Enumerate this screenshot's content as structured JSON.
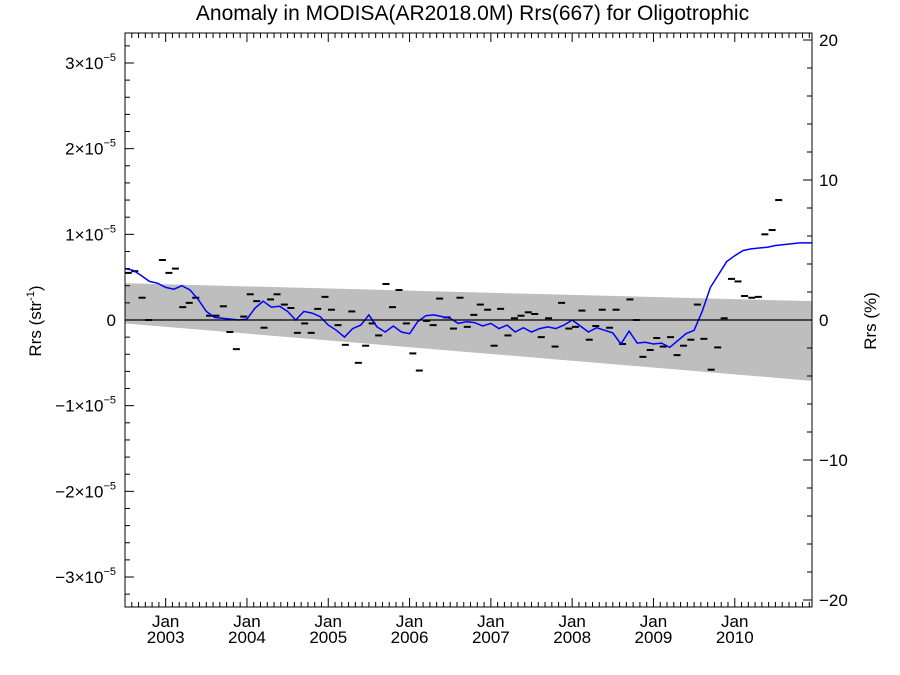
{
  "chart_data": {
    "type": "line",
    "title": "Anomaly in MODISA(AR2018.0M) Rrs(667) for Oligotrophic",
    "ylabel": "Rrs (str",
    "ylabel_sup": "-1",
    "ylabel_close": ")",
    "y2label": "Rrs (%)",
    "xlim": [
      2002.5,
      2010.95
    ],
    "ylim": [
      -3.35e-05,
      3.35e-05
    ],
    "y2lim": [
      -20.5,
      20.5
    ],
    "y_ticks": [
      {
        "value": 3e-05,
        "mant": "3×10",
        "exp": "−5"
      },
      {
        "value": 2e-05,
        "mant": "2×10",
        "exp": "−5"
      },
      {
        "value": 1e-05,
        "mant": "1×10",
        "exp": "−5"
      },
      {
        "value": 0,
        "mant": "0",
        "exp": ""
      },
      {
        "value": -1e-05,
        "mant": "−1×10",
        "exp": "−5"
      },
      {
        "value": -2e-05,
        "mant": "−2×10",
        "exp": "−5"
      },
      {
        "value": -3e-05,
        "mant": "−3×10",
        "exp": "−5"
      }
    ],
    "y2_ticks": [
      {
        "value": 20,
        "label": "20"
      },
      {
        "value": 10,
        "label": "10"
      },
      {
        "value": 0,
        "label": "0"
      },
      {
        "value": -10,
        "label": "−10"
      },
      {
        "value": -20,
        "label": "−20"
      }
    ],
    "x_ticks": [
      {
        "value": 2003,
        "month": "Jan",
        "year": "2003"
      },
      {
        "value": 2004,
        "month": "Jan",
        "year": "2004"
      },
      {
        "value": 2005,
        "month": "Jan",
        "year": "2005"
      },
      {
        "value": 2006,
        "month": "Jan",
        "year": "2006"
      },
      {
        "value": 2007,
        "month": "Jan",
        "year": "2007"
      },
      {
        "value": 2008,
        "month": "Jan",
        "year": "2008"
      },
      {
        "value": 2009,
        "month": "Jan",
        "year": "2009"
      },
      {
        "value": 2010,
        "month": "Jan",
        "year": "2010"
      }
    ],
    "band": {
      "color": "#bebebe",
      "x": [
        2002.5,
        2010.95
      ],
      "upper": [
        4.3e-06,
        2.2e-06
      ],
      "lower": [
        -4e-07,
        -7.1e-06
      ]
    },
    "monthly_markers": {
      "color": "#000000",
      "points": [
        [
          2002.54,
          5.5e-06
        ],
        [
          2002.62,
          5.7e-06
        ],
        [
          2002.71,
          2.6e-06
        ],
        [
          2002.79,
          0.0
        ],
        [
          2002.96,
          7e-06
        ],
        [
          2003.04,
          5.5e-06
        ],
        [
          2003.12,
          6e-06
        ],
        [
          2003.21,
          1.5e-06
        ],
        [
          2003.29,
          2e-06
        ],
        [
          2003.37,
          2.6e-06
        ],
        [
          2003.54,
          5e-07
        ],
        [
          2003.62,
          5e-07
        ],
        [
          2003.71,
          1.6e-06
        ],
        [
          2003.79,
          -1.4e-06
        ],
        [
          2003.87,
          -3.4e-06
        ],
        [
          2003.96,
          4e-07
        ],
        [
          2004.04,
          3e-06
        ],
        [
          2004.12,
          2.2e-06
        ],
        [
          2004.21,
          -9e-07
        ],
        [
          2004.29,
          2.4e-06
        ],
        [
          2004.37,
          3e-06
        ],
        [
          2004.46,
          1.8e-06
        ],
        [
          2004.54,
          1.4e-06
        ],
        [
          2004.62,
          -1.5e-06
        ],
        [
          2004.71,
          -4e-07
        ],
        [
          2004.79,
          -1.5e-06
        ],
        [
          2004.87,
          1.3e-06
        ],
        [
          2004.96,
          2.7e-06
        ],
        [
          2005.04,
          1.2e-06
        ],
        [
          2005.12,
          -6e-07
        ],
        [
          2005.21,
          -2.9e-06
        ],
        [
          2005.29,
          1e-06
        ],
        [
          2005.37,
          -5e-06
        ],
        [
          2005.46,
          -3e-06
        ],
        [
          2005.54,
          -4e-07
        ],
        [
          2005.62,
          -1.8e-06
        ],
        [
          2005.71,
          4.2e-06
        ],
        [
          2005.79,
          1.5e-06
        ],
        [
          2005.87,
          3.5e-06
        ],
        [
          2005.96,
          -4e-07
        ],
        [
          2006.04,
          -3.9e-06
        ],
        [
          2006.12,
          -5.9e-06
        ],
        [
          2006.21,
          -1e-07
        ],
        [
          2006.29,
          -6e-07
        ],
        [
          2006.37,
          2.5e-06
        ],
        [
          2006.46,
          3e-07
        ],
        [
          2006.54,
          -1e-06
        ],
        [
          2006.62,
          2.6e-06
        ],
        [
          2006.71,
          -8e-07
        ],
        [
          2006.79,
          6e-07
        ],
        [
          2006.87,
          1.8e-06
        ],
        [
          2006.96,
          1.2e-06
        ],
        [
          2007.04,
          -3e-06
        ],
        [
          2007.12,
          1.3e-06
        ],
        [
          2007.21,
          -1.8e-06
        ],
        [
          2007.29,
          2e-07
        ],
        [
          2007.37,
          5e-07
        ],
        [
          2007.46,
          9e-07
        ],
        [
          2007.54,
          7e-07
        ],
        [
          2007.62,
          -2e-06
        ],
        [
          2007.71,
          2e-07
        ],
        [
          2007.79,
          -3.1e-06
        ],
        [
          2007.87,
          2e-06
        ],
        [
          2007.96,
          -1e-06
        ],
        [
          2008.04,
          -8e-07
        ],
        [
          2008.12,
          1.1e-06
        ],
        [
          2008.21,
          -2.3e-06
        ],
        [
          2008.29,
          -7e-07
        ],
        [
          2008.37,
          1.2e-06
        ],
        [
          2008.46,
          -9e-07
        ],
        [
          2008.54,
          1.2e-06
        ],
        [
          2008.62,
          -2.8e-06
        ],
        [
          2008.71,
          2.4e-06
        ],
        [
          2008.79,
          0.0
        ],
        [
          2008.87,
          -4.3e-06
        ],
        [
          2008.96,
          -3.5e-06
        ],
        [
          2009.04,
          -2.1e-06
        ],
        [
          2009.12,
          -3.1e-06
        ],
        [
          2009.21,
          -2e-06
        ],
        [
          2009.29,
          -4.1e-06
        ],
        [
          2009.37,
          -3e-06
        ],
        [
          2009.46,
          -2.3e-06
        ],
        [
          2009.54,
          1.8e-06
        ],
        [
          2009.62,
          -2.2e-06
        ],
        [
          2009.71,
          -5.8e-06
        ],
        [
          2009.79,
          -3.2e-06
        ],
        [
          2009.87,
          2e-07
        ],
        [
          2009.96,
          4.8e-06
        ],
        [
          2010.04,
          4.5e-06
        ],
        [
          2010.12,
          2.8e-06
        ],
        [
          2010.21,
          2.6e-06
        ],
        [
          2010.29,
          2.7e-06
        ],
        [
          2010.37,
          1e-05
        ],
        [
          2010.46,
          1.05e-05
        ],
        [
          2010.54,
          1.4e-05
        ]
      ]
    },
    "series": [
      {
        "color": "#0000ff",
        "x": [
          2002.5,
          2002.6,
          2002.7,
          2002.8,
          2002.9,
          2003.0,
          2003.1,
          2003.2,
          2003.3,
          2003.4,
          2003.5,
          2003.6,
          2003.7,
          2003.8,
          2003.9,
          2004.0,
          2004.1,
          2004.2,
          2004.3,
          2004.4,
          2004.5,
          2004.6,
          2004.7,
          2004.8,
          2004.9,
          2005.0,
          2005.1,
          2005.2,
          2005.3,
          2005.4,
          2005.5,
          2005.6,
          2005.7,
          2005.8,
          2005.9,
          2006.0,
          2006.1,
          2006.2,
          2006.3,
          2006.4,
          2006.5,
          2006.6,
          2006.7,
          2006.8,
          2006.9,
          2007.0,
          2007.1,
          2007.2,
          2007.3,
          2007.4,
          2007.5,
          2007.6,
          2007.7,
          2007.8,
          2007.9,
          2008.0,
          2008.1,
          2008.2,
          2008.3,
          2008.4,
          2008.5,
          2008.6,
          2008.7,
          2008.8,
          2008.9,
          2009.0,
          2009.1,
          2009.2,
          2009.3,
          2009.4,
          2009.5,
          2009.6,
          2009.7,
          2009.8,
          2009.9,
          2010.0,
          2010.1,
          2010.2,
          2010.3,
          2010.4,
          2010.5,
          2010.6,
          2010.7,
          2010.8,
          2010.95
        ],
        "values": [
          6e-06,
          5.8e-06,
          5.2e-06,
          4.5e-06,
          4.3e-06,
          3.8e-06,
          3.6e-06,
          4e-06,
          3.5e-06,
          2.4e-06,
          1e-06,
          3e-07,
          2e-07,
          1e-07,
          0.0,
          1e-07,
          1.4e-06,
          2.2e-06,
          1.5e-06,
          1.6e-06,
          1e-06,
          0.0,
          1e-06,
          8e-07,
          4e-07,
          -6e-07,
          -1.2e-06,
          -2e-06,
          -1e-06,
          -6e-07,
          6e-07,
          -8e-07,
          -1.4e-06,
          -7e-07,
          -1.4e-06,
          -1.6e-06,
          -2e-07,
          5e-07,
          6e-07,
          4e-07,
          2e-07,
          -4e-07,
          -2e-07,
          -3e-07,
          -7e-07,
          -4e-07,
          -1e-06,
          -6e-07,
          -1.4e-06,
          -9e-07,
          -1.4e-06,
          -1e-06,
          -8e-07,
          -1e-06,
          -6e-07,
          0.0,
          -7e-07,
          -1.4e-06,
          -9e-07,
          -1.2e-06,
          -1.5e-06,
          -2.8e-06,
          -1.3e-06,
          -2.7e-06,
          -2.6e-06,
          -2.8e-06,
          -2.7e-06,
          -3.2e-06,
          -2.4e-06,
          -1.6e-06,
          -1.2e-06,
          1e-06,
          3.8e-06,
          5.3e-06,
          6.8e-06,
          7.5e-06,
          8.1e-06,
          8.3e-06,
          8.4e-06,
          8.5e-06,
          8.7e-06,
          8.8e-06,
          8.9e-06,
          9e-06,
          9e-06
        ]
      }
    ],
    "grid": false
  }
}
